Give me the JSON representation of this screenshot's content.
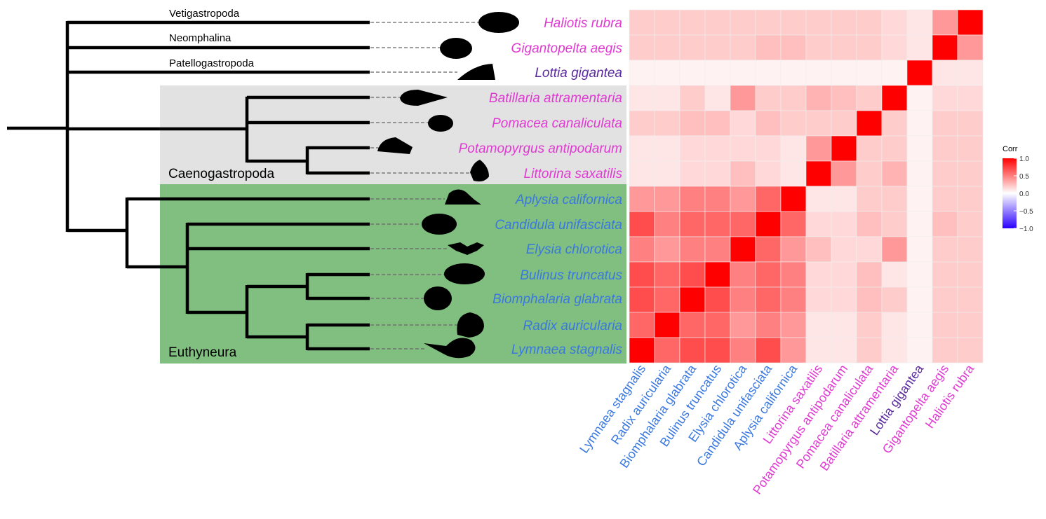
{
  "clades": {
    "vetigastropoda": "Vetigastropoda",
    "neomphalina": "Neomphalina",
    "patellogastropoda": "Patellogastropoda",
    "caenogastropoda": "Caenogastropoda",
    "euthyneura": "Euthyneura"
  },
  "colors": {
    "pink": "#e03ad2",
    "purple": "#5a2a9e",
    "blue": "#3a78e0",
    "caeno_bg": "#e2e2e2",
    "euthy_bg": "#80bf7f",
    "heat_max": "#ff0000",
    "heat_mid": "#ffffff",
    "heat_min": "#2a00ff"
  },
  "species": [
    {
      "name": "Haliotis rubra",
      "group": "pink"
    },
    {
      "name": "Gigantopelta aegis",
      "group": "pink"
    },
    {
      "name": "Lottia gigantea",
      "group": "purple"
    },
    {
      "name": "Batillaria attramentaria",
      "group": "pink"
    },
    {
      "name": "Pomacea canaliculata",
      "group": "pink"
    },
    {
      "name": "Potamopyrgus antipodarum",
      "group": "pink"
    },
    {
      "name": "Littorina saxatilis",
      "group": "pink"
    },
    {
      "name": "Aplysia californica",
      "group": "blue"
    },
    {
      "name": "Candidula unifasciata",
      "group": "blue"
    },
    {
      "name": "Elysia chlorotica",
      "group": "blue"
    },
    {
      "name": "Bulinus truncatus",
      "group": "blue"
    },
    {
      "name": "Biomphalaria glabrata",
      "group": "blue"
    },
    {
      "name": "Radix auricularia",
      "group": "blue"
    },
    {
      "name": "Lymnaea stagnalis",
      "group": "blue"
    }
  ],
  "legend": {
    "title": "Corr",
    "ticks": [
      "1.0",
      "0.5",
      "0.0",
      "−0.5",
      "−1.0"
    ]
  },
  "chart_data": {
    "type": "heatmap",
    "title": "",
    "legend_title": "Corr",
    "legend_range": [
      -1,
      1
    ],
    "x": [
      "Lymnaea stagnalis",
      "Radix auricularia",
      "Biomphalaria glabrata",
      "Bulinus truncatus",
      "Elysia chlorotica",
      "Candidula unifasciata",
      "Aplysia californica",
      "Littorina saxatilis",
      "Potamopyrgus antipodarum",
      "Pomacea canaliculata",
      "Batillaria attramentaria",
      "Lottia gigantea",
      "Gigantopelta aegis",
      "Haliotis rubra"
    ],
    "y_top_to_bottom": [
      "Haliotis rubra",
      "Gigantopelta aegis",
      "Lottia gigantea",
      "Batillaria attramentaria",
      "Pomacea canaliculata",
      "Potamopyrgus antipodarum",
      "Littorina saxatilis",
      "Aplysia californica",
      "Candidula unifasciata",
      "Elysia chlorotica",
      "Bulinus truncatus",
      "Biomphalaria glabrata",
      "Radix auricularia",
      "Lymnaea stagnalis"
    ],
    "values": [
      [
        0.2,
        0.2,
        0.2,
        0.2,
        0.2,
        0.2,
        0.2,
        0.2,
        0.2,
        0.2,
        0.15,
        0.1,
        0.4,
        1.0
      ],
      [
        0.2,
        0.2,
        0.2,
        0.2,
        0.2,
        0.25,
        0.25,
        0.2,
        0.2,
        0.2,
        0.15,
        0.1,
        1.0,
        0.4
      ],
      [
        0.05,
        0.05,
        0.05,
        0.05,
        0.05,
        0.05,
        0.05,
        0.05,
        0.05,
        0.05,
        0.05,
        1.0,
        0.1,
        0.1
      ],
      [
        0.1,
        0.1,
        0.2,
        0.1,
        0.4,
        0.2,
        0.2,
        0.3,
        0.25,
        0.2,
        1.0,
        0.05,
        0.15,
        0.15
      ],
      [
        0.2,
        0.2,
        0.25,
        0.25,
        0.15,
        0.25,
        0.2,
        0.2,
        0.2,
        1.0,
        0.2,
        0.05,
        0.2,
        0.2
      ],
      [
        0.1,
        0.1,
        0.15,
        0.15,
        0.15,
        0.15,
        0.1,
        0.4,
        1.0,
        0.2,
        0.2,
        0.05,
        0.2,
        0.2
      ],
      [
        0.1,
        0.1,
        0.15,
        0.15,
        0.25,
        0.15,
        0.1,
        1.0,
        0.4,
        0.2,
        0.3,
        0.05,
        0.2,
        0.2
      ],
      [
        0.4,
        0.4,
        0.5,
        0.5,
        0.4,
        0.6,
        1.0,
        0.1,
        0.1,
        0.2,
        0.2,
        0.05,
        0.2,
        0.2
      ],
      [
        0.7,
        0.5,
        0.6,
        0.6,
        0.6,
        1.0,
        0.6,
        0.15,
        0.15,
        0.25,
        0.2,
        0.05,
        0.25,
        0.2
      ],
      [
        0.5,
        0.4,
        0.5,
        0.5,
        1.0,
        0.6,
        0.4,
        0.25,
        0.15,
        0.15,
        0.4,
        0.05,
        0.2,
        0.2
      ],
      [
        0.7,
        0.6,
        0.7,
        1.0,
        0.5,
        0.6,
        0.5,
        0.15,
        0.15,
        0.25,
        0.1,
        0.05,
        0.2,
        0.2
      ],
      [
        0.7,
        0.6,
        1.0,
        0.7,
        0.5,
        0.6,
        0.5,
        0.15,
        0.15,
        0.25,
        0.2,
        0.05,
        0.2,
        0.2
      ],
      [
        0.6,
        1.0,
        0.6,
        0.6,
        0.4,
        0.5,
        0.4,
        0.1,
        0.1,
        0.2,
        0.1,
        0.05,
        0.2,
        0.2
      ],
      [
        1.0,
        0.6,
        0.7,
        0.7,
        0.5,
        0.7,
        0.4,
        0.1,
        0.1,
        0.2,
        0.1,
        0.05,
        0.2,
        0.2
      ]
    ]
  }
}
